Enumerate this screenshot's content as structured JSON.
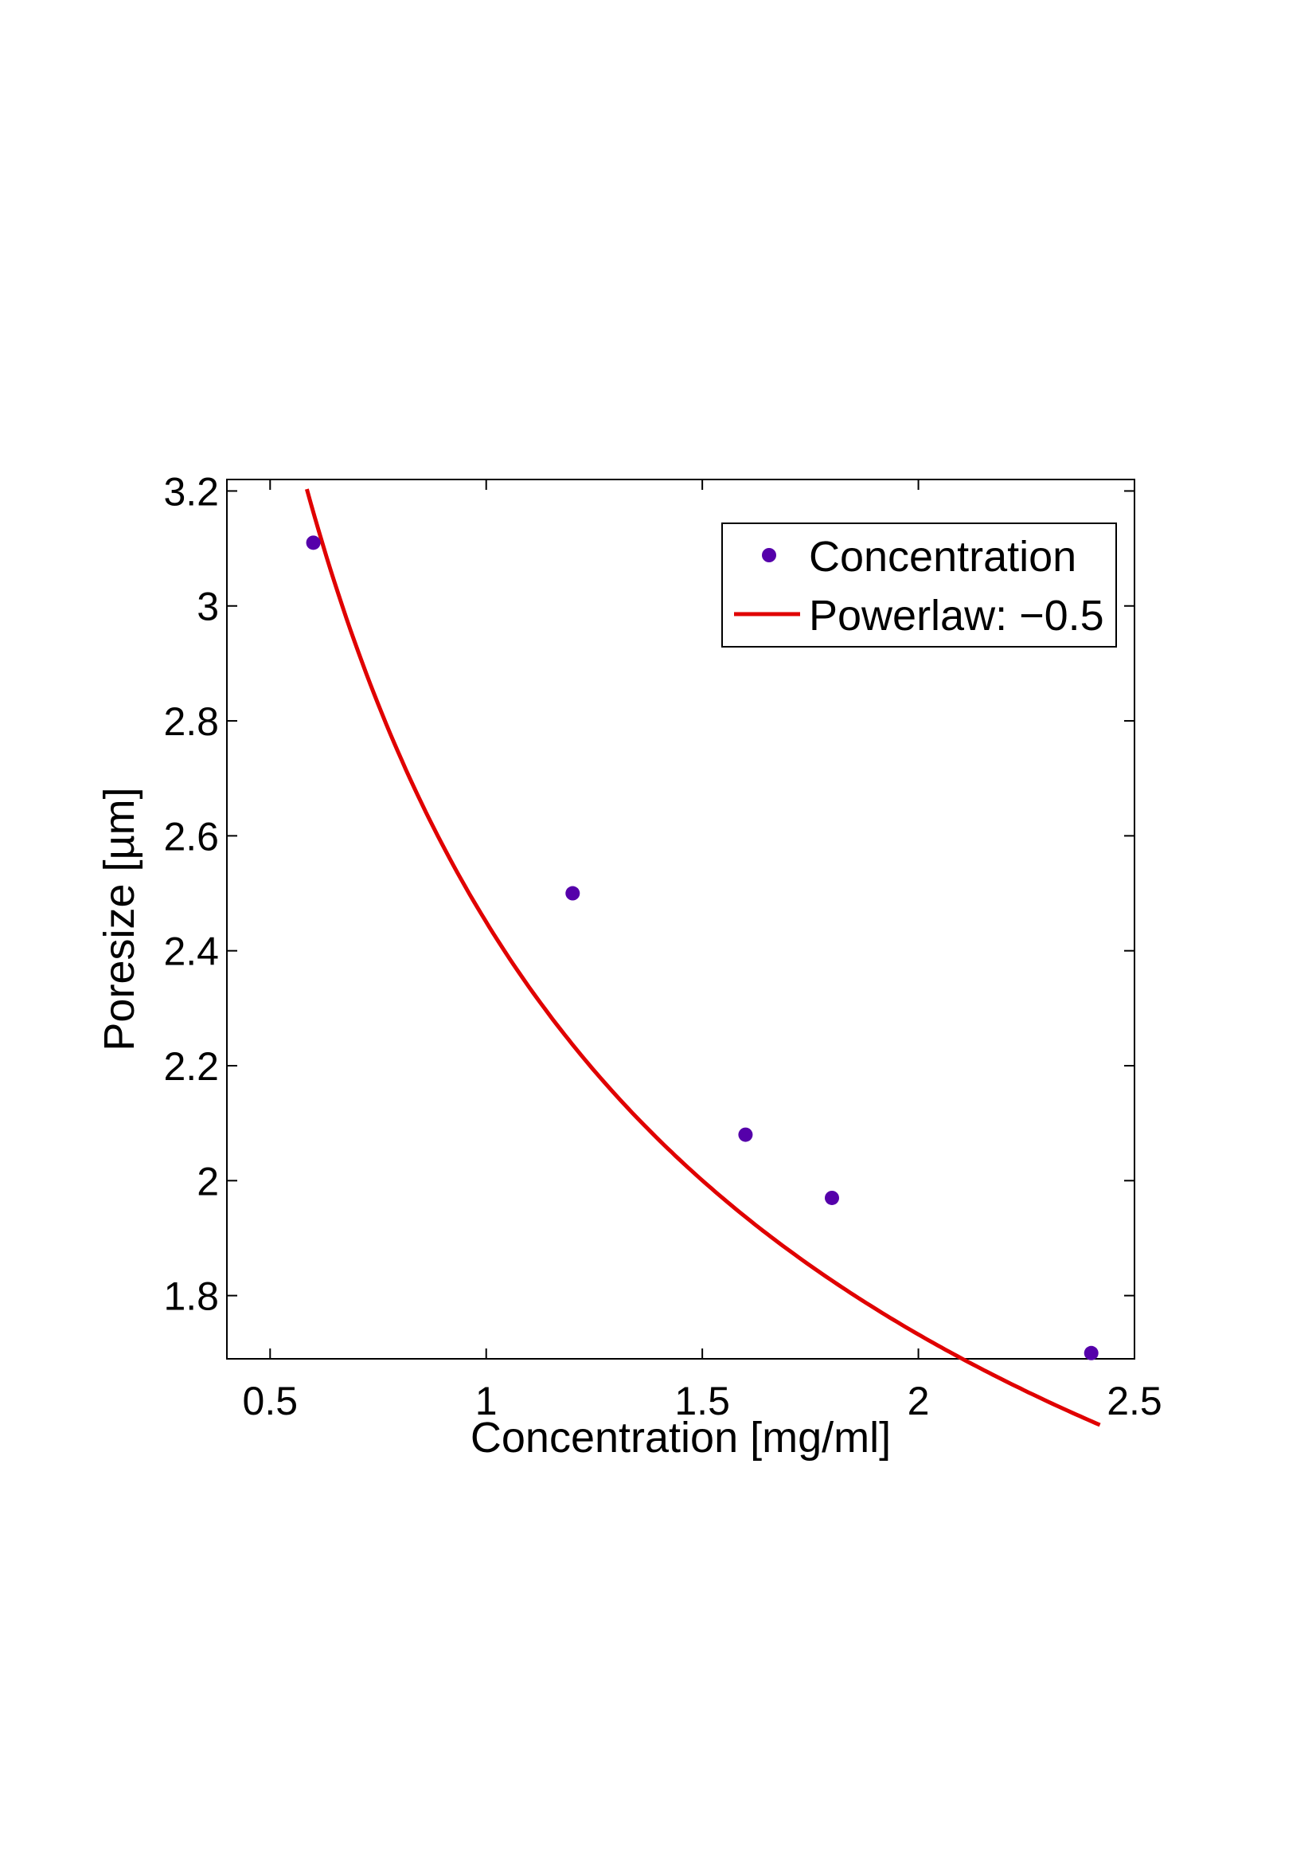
{
  "chart_data": {
    "type": "scatter",
    "xlabel": "Concentration [mg/ml]",
    "ylabel": "Poresize [µm]",
    "xlim": [
      0.4,
      2.5
    ],
    "ylim": [
      1.69,
      3.22
    ],
    "x_ticks": [
      0.5,
      1,
      1.5,
      2,
      2.5
    ],
    "x_tick_labels": [
      "0.5",
      "1",
      "1.5",
      "2",
      "2.5"
    ],
    "y_ticks": [
      1.8,
      2,
      2.2,
      2.4,
      2.6,
      2.8,
      3,
      3.2
    ],
    "y_tick_labels": [
      "1.8",
      "2",
      "2.2",
      "2.4",
      "2.6",
      "2.8",
      "3",
      "3.2"
    ],
    "grid": false,
    "legend_position": "top-right",
    "series": [
      {
        "name": "Concentration",
        "kind": "scatter",
        "color": "#5500aa",
        "x": [
          0.6,
          1.2,
          1.6,
          1.8,
          2.4
        ],
        "y": [
          3.11,
          2.5,
          2.08,
          1.97,
          1.7
        ]
      },
      {
        "name": "Powerlaw: −0.5",
        "kind": "line",
        "color": "#e00000",
        "coefficient": 2.45,
        "exponent": -0.5,
        "x_range": [
          0.585,
          2.42
        ]
      }
    ]
  }
}
